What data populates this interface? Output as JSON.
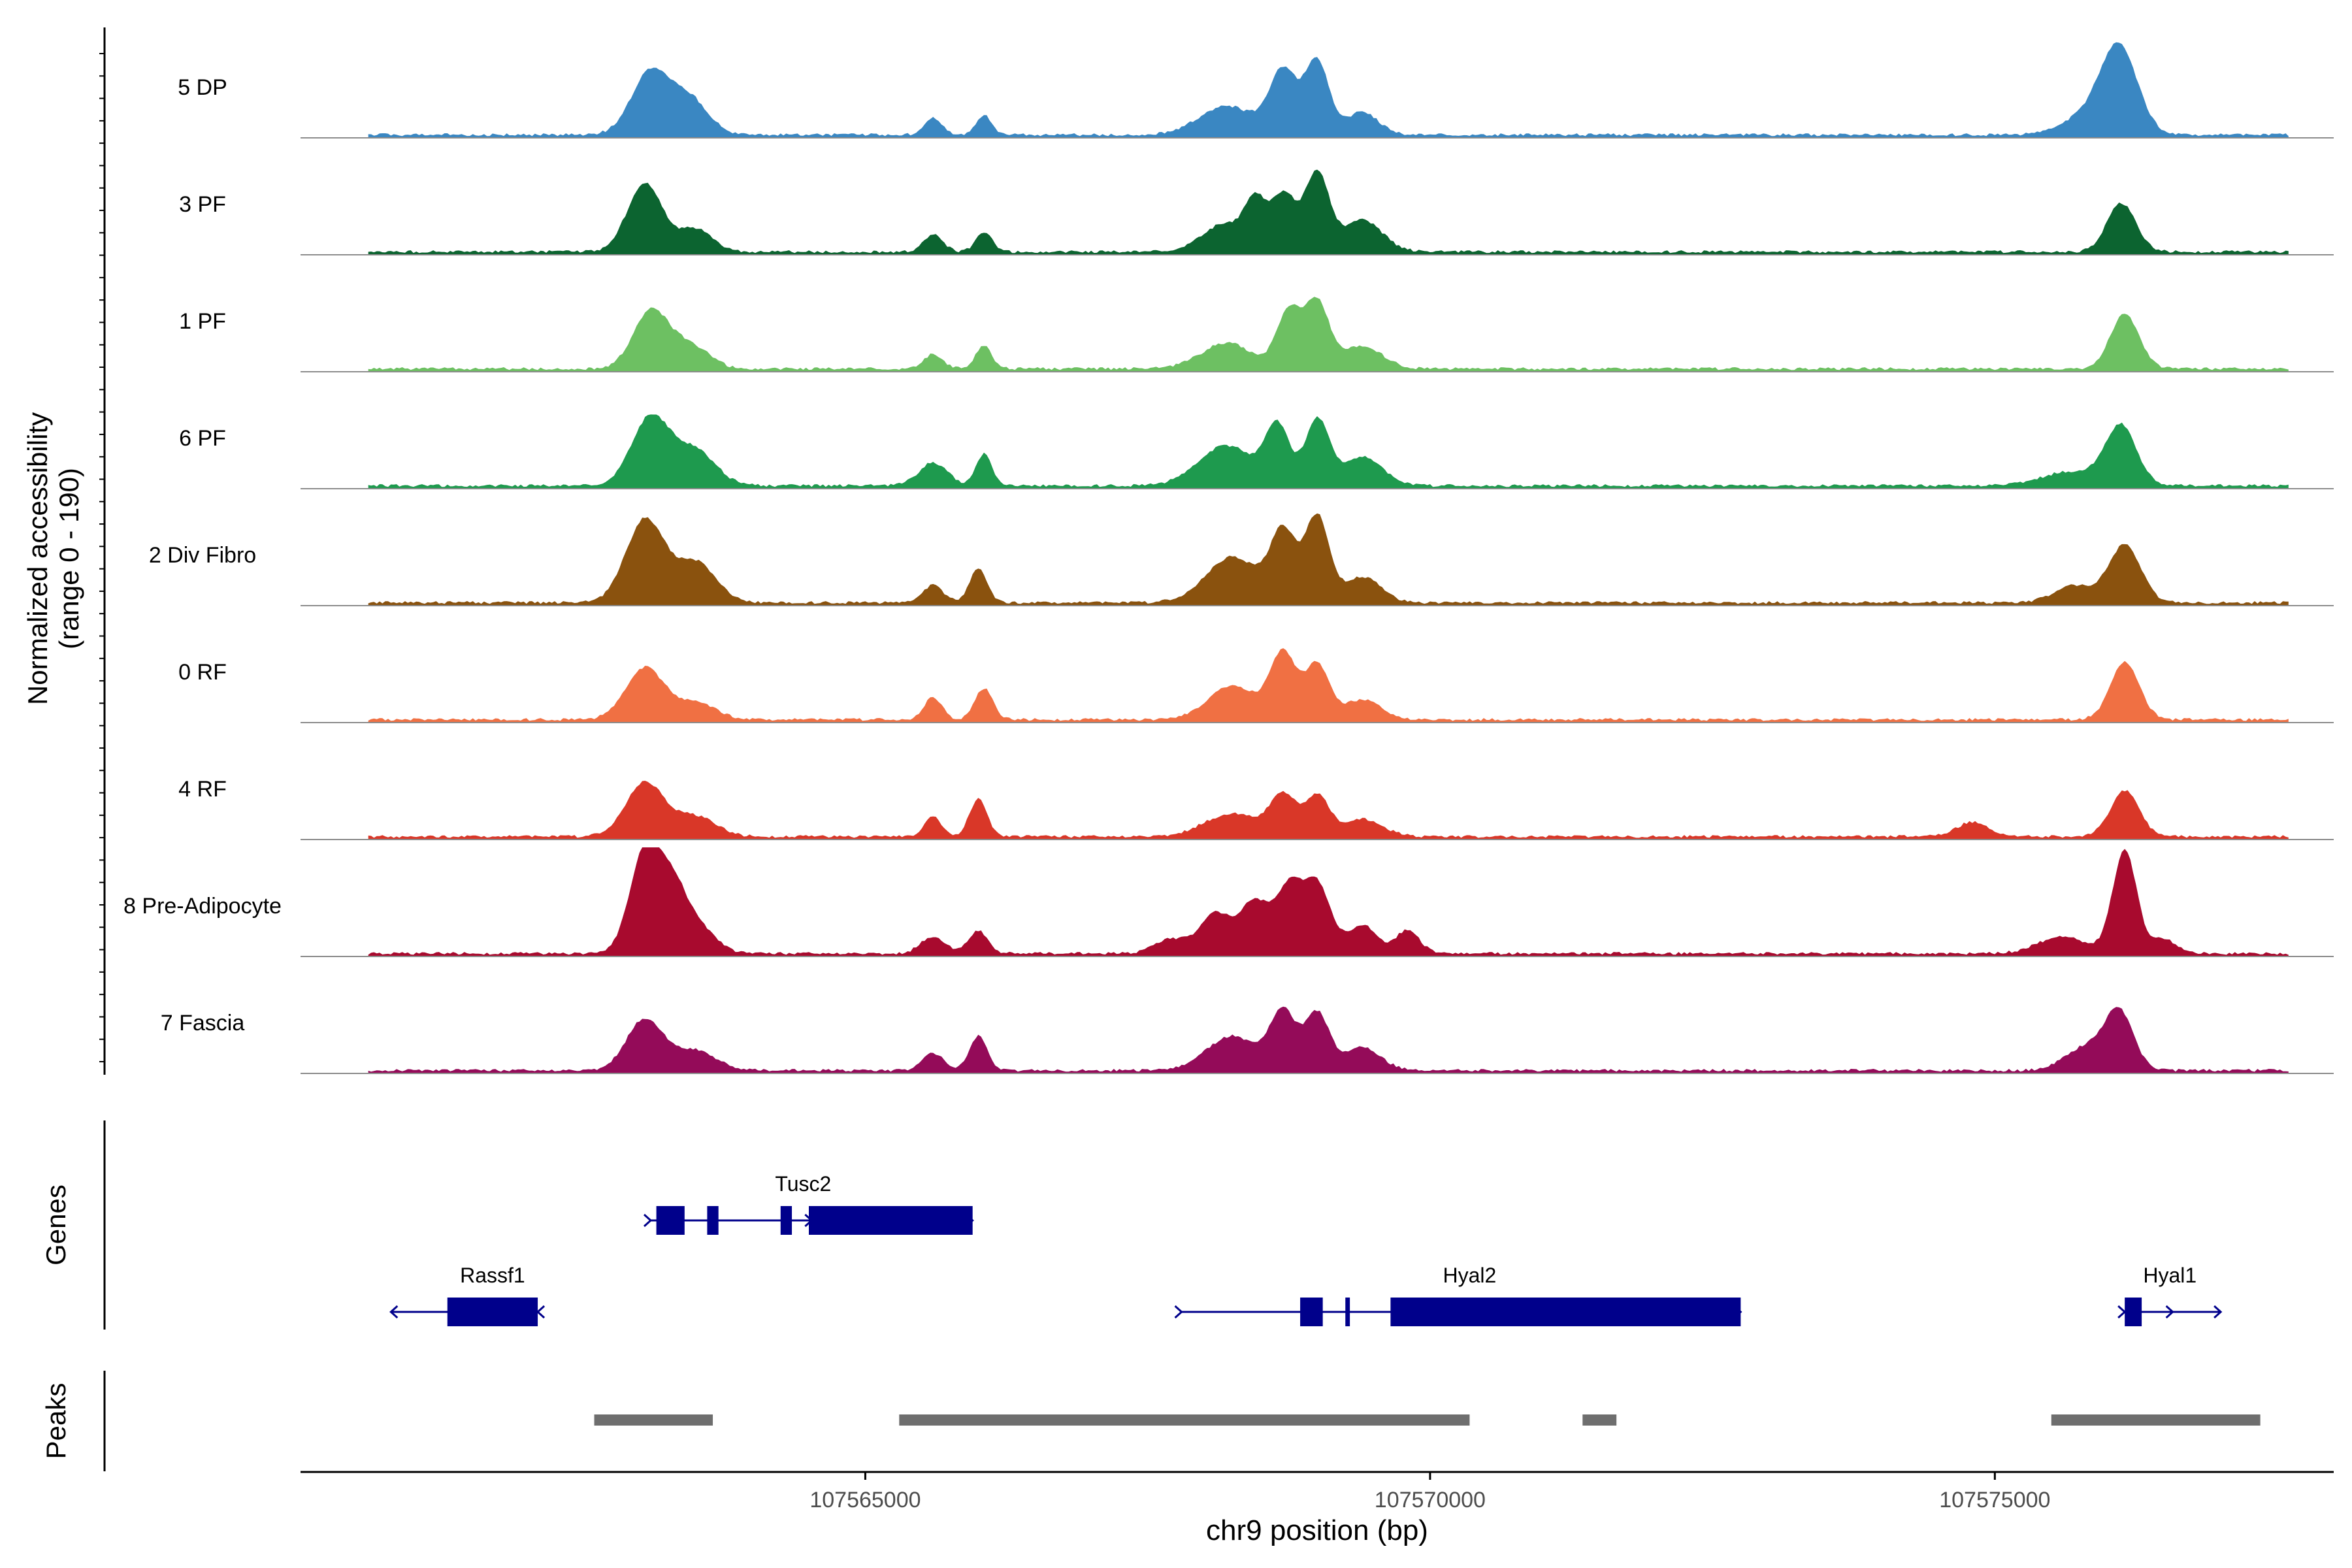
{
  "chart_data": {
    "type": "area",
    "title": "",
    "ylabel_line1": "Normalized accessibility",
    "ylabel_line2": "(range 0 - 190)",
    "ylim": [
      0,
      190
    ],
    "xlabel": "chr9 position (bp)",
    "xlim": [
      107560000,
      107578000
    ],
    "xticks": [
      107565000,
      107570000,
      107575000
    ],
    "xtick_labels": [
      "107565000",
      "107570000",
      "107575000"
    ],
    "series": [
      {
        "name": "5 DP",
        "color": "#3a87c2",
        "peaks": [
          [
            107563100,
            110,
            240
          ],
          [
            107563450,
            60,
            230
          ],
          [
            107565600,
            30,
            110
          ],
          [
            107566050,
            35,
            90
          ],
          [
            107568200,
            50,
            350
          ],
          [
            107568700,
            110,
            170
          ],
          [
            107569000,
            130,
            150
          ],
          [
            107569400,
            40,
            200
          ],
          [
            107576100,
            150,
            230
          ],
          [
            107575800,
            30,
            300
          ]
        ]
      },
      {
        "name": "3 PF",
        "color": "#0c6430",
        "peaks": [
          [
            107563050,
            120,
            220
          ],
          [
            107563500,
            40,
            200
          ],
          [
            107565600,
            30,
            120
          ],
          [
            107566050,
            35,
            100
          ],
          [
            107568200,
            50,
            300
          ],
          [
            107568450,
            70,
            120
          ],
          [
            107568700,
            100,
            160
          ],
          [
            107569000,
            135,
            150
          ],
          [
            107569400,
            55,
            250
          ],
          [
            107576120,
            85,
            180
          ]
        ]
      },
      {
        "name": "1 PF",
        "color": "#6dc062",
        "peaks": [
          [
            107563100,
            100,
            220
          ],
          [
            107563450,
            40,
            240
          ],
          [
            107565600,
            25,
            120
          ],
          [
            107566050,
            40,
            100
          ],
          [
            107568200,
            45,
            320
          ],
          [
            107568750,
            100,
            150
          ],
          [
            107569000,
            115,
            150
          ],
          [
            107569400,
            40,
            250
          ],
          [
            107576150,
            95,
            180
          ]
        ]
      },
      {
        "name": "6 PF",
        "color": "#1e9a4e",
        "peaks": [
          [
            107563100,
            120,
            240
          ],
          [
            107563500,
            60,
            250
          ],
          [
            107565600,
            40,
            180
          ],
          [
            107566050,
            55,
            100
          ],
          [
            107568200,
            70,
            350
          ],
          [
            107568650,
            100,
            150
          ],
          [
            107569000,
            115,
            150
          ],
          [
            107569400,
            50,
            250
          ],
          [
            107576120,
            100,
            190
          ],
          [
            107575700,
            25,
            400
          ]
        ]
      },
      {
        "name": "2 Div Fibro",
        "color": "#8a520e",
        "peaks": [
          [
            107563050,
            145,
            240
          ],
          [
            107563500,
            70,
            250
          ],
          [
            107565600,
            30,
            130
          ],
          [
            107566000,
            60,
            110
          ],
          [
            107568250,
            80,
            330
          ],
          [
            107568700,
            120,
            160
          ],
          [
            107569000,
            150,
            150
          ],
          [
            107569400,
            45,
            230
          ],
          [
            107575700,
            30,
            250
          ],
          [
            107576150,
            100,
            200
          ]
        ]
      },
      {
        "name": "0 RF",
        "color": "#f07043",
        "peaks": [
          [
            107563050,
            90,
            240
          ],
          [
            107563500,
            30,
            250
          ],
          [
            107565600,
            40,
            110
          ],
          [
            107566050,
            55,
            110
          ],
          [
            107568250,
            60,
            300
          ],
          [
            107568700,
            115,
            160
          ],
          [
            107569000,
            95,
            150
          ],
          [
            107569400,
            35,
            230
          ],
          [
            107576150,
            100,
            180
          ]
        ]
      },
      {
        "name": "4 RF",
        "color": "#d93728",
        "peaks": [
          [
            107563050,
            95,
            240
          ],
          [
            107563500,
            35,
            250
          ],
          [
            107565600,
            35,
            110
          ],
          [
            107566000,
            65,
            110
          ],
          [
            107568250,
            40,
            350
          ],
          [
            107568700,
            70,
            160
          ],
          [
            107569000,
            70,
            150
          ],
          [
            107569400,
            30,
            250
          ],
          [
            107574800,
            25,
            200
          ],
          [
            107576150,
            80,
            180
          ]
        ]
      },
      {
        "name": "8 Pre-Adipocyte",
        "color": "#a80a2e",
        "peaks": [
          [
            107563050,
            180,
            190
          ],
          [
            107563300,
            110,
            180
          ],
          [
            107563550,
            40,
            200
          ],
          [
            107565600,
            30,
            150
          ],
          [
            107566000,
            40,
            120
          ],
          [
            107567700,
            25,
            200
          ],
          [
            107568100,
            70,
            200
          ],
          [
            107568450,
            90,
            180
          ],
          [
            107568750,
            110,
            160
          ],
          [
            107569000,
            120,
            170
          ],
          [
            107569400,
            50,
            180
          ],
          [
            107569800,
            40,
            150
          ],
          [
            107576150,
            180,
            150
          ],
          [
            107575600,
            30,
            300
          ],
          [
            107576500,
            25,
            150
          ]
        ]
      },
      {
        "name": "7 Fascia",
        "color": "#940b59",
        "peaks": [
          [
            107563050,
            90,
            230
          ],
          [
            107563500,
            35,
            250
          ],
          [
            107565600,
            30,
            140
          ],
          [
            107566000,
            60,
            110
          ],
          [
            107568250,
            60,
            320
          ],
          [
            107568700,
            100,
            160
          ],
          [
            107569000,
            100,
            150
          ],
          [
            107569400,
            40,
            230
          ],
          [
            107575800,
            40,
            250
          ],
          [
            107576100,
            100,
            180
          ]
        ]
      }
    ],
    "genes_label": "Genes",
    "genes": [
      {
        "name": "Tusc2",
        "strand": "+",
        "start": 107563100,
        "end": 107565950,
        "exons": [
          [
            107563150,
            107563400
          ],
          [
            107563600,
            107563700
          ],
          [
            107564250,
            107564350
          ],
          [
            107564500,
            107565950
          ]
        ]
      },
      {
        "name": "Rassf1",
        "strand": "-",
        "start": 107560800,
        "end": 107562100,
        "exons": [
          [
            107561300,
            107562100
          ]
        ]
      },
      {
        "name": "Hyal2",
        "strand": "+",
        "start": 107567800,
        "end": 107572750,
        "exons": [
          [
            107568850,
            107569050
          ],
          [
            107569250,
            107569290
          ],
          [
            107569650,
            107572750
          ]
        ]
      },
      {
        "name": "Hyal1",
        "strand": "+",
        "start": 107576150,
        "end": 107577000,
        "exons": [
          [
            107576150,
            107576300
          ]
        ]
      }
    ],
    "peaks_label": "Peaks",
    "peaks": [
      [
        107562600,
        107563650
      ],
      [
        107565300,
        107570350
      ],
      [
        107571350,
        107571650
      ],
      [
        107575500,
        107577350
      ]
    ]
  }
}
